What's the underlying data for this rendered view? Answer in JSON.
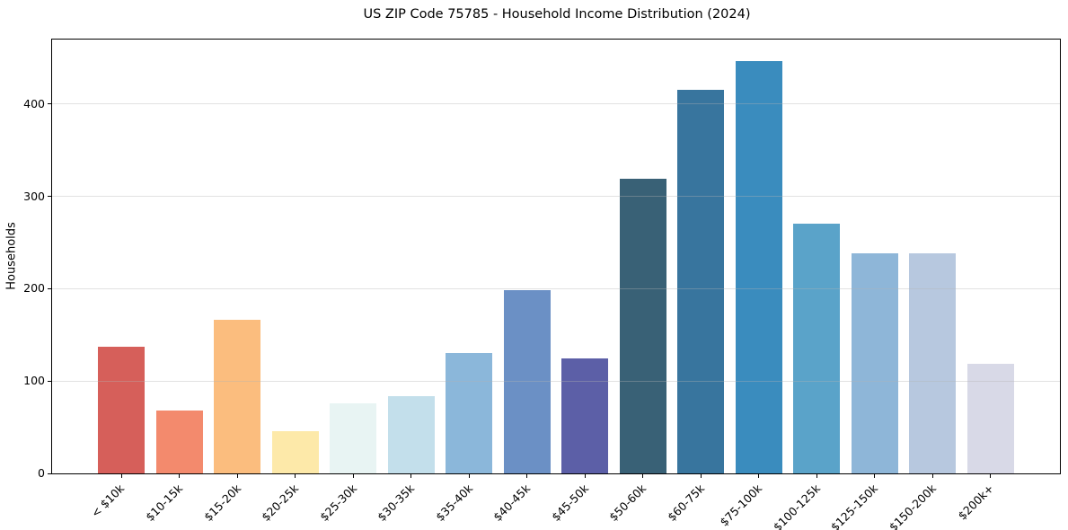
{
  "chart_data": {
    "type": "bar",
    "title": "US ZIP Code 75785 - Household Income Distribution (2024)",
    "xlabel": "",
    "ylabel": "Households",
    "categories": [
      "< $10k",
      "$10-15k",
      "$15-20k",
      "$20-25k",
      "$25-30k",
      "$30-35k",
      "$35-40k",
      "$40-45k",
      "$45-50k",
      "$50-60k",
      "$60-75k",
      "$75-100k",
      "$100-125k",
      "$125-150k",
      "$150-200k",
      "$200k+"
    ],
    "values": [
      137,
      68,
      166,
      46,
      76,
      84,
      130,
      199,
      125,
      319,
      416,
      447,
      271,
      238,
      238,
      119
    ],
    "bar_colors": [
      "#d65f5a",
      "#f38a6d",
      "#fbbd7e",
      "#fde9a9",
      "#e8f4f3",
      "#c3dfeb",
      "#8bb7da",
      "#6b90c5",
      "#5c5fa7",
      "#396176",
      "#38759e",
      "#3a8cbe",
      "#5aa3c9",
      "#8eb6d8",
      "#b7c8df",
      "#d8d9e7"
    ],
    "ylim": [
      0,
      470
    ],
    "yticks": [
      0,
      100,
      200,
      300,
      400
    ],
    "grid": "horizontal",
    "grid_color": "#e6e6e6",
    "legend": "none",
    "background_color": "#ffffff"
  }
}
